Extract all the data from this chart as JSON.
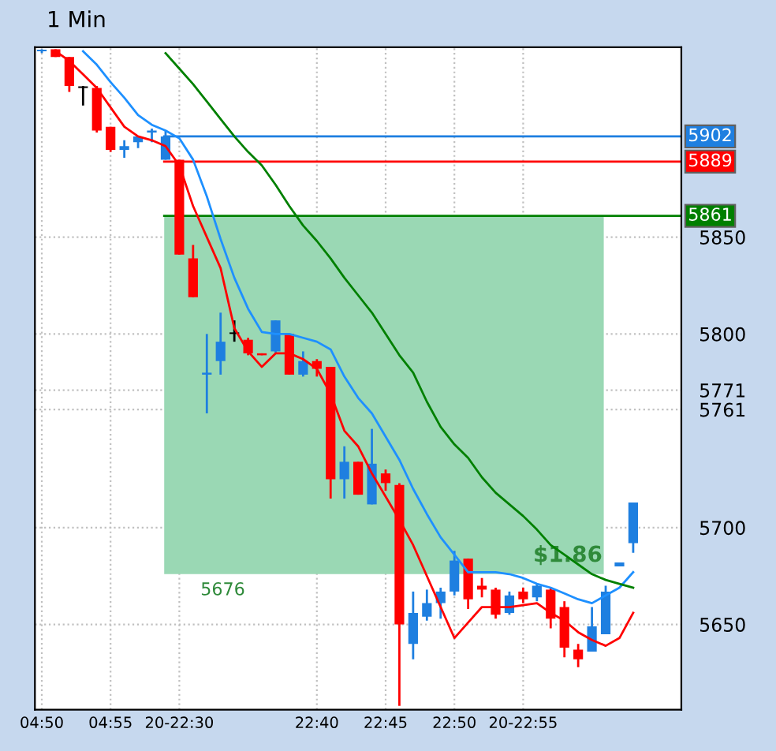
{
  "chart_data": {
    "type": "candlestick",
    "title": "1 Min",
    "categories": [
      "04:50",
      null,
      null,
      null,
      null,
      "04:55",
      null,
      null,
      null,
      null,
      "20-22:30",
      null,
      null,
      null,
      null,
      null,
      null,
      null,
      null,
      null,
      "22:40",
      null,
      null,
      null,
      null,
      "22:45",
      null,
      null,
      null,
      null,
      "22:50",
      null,
      null,
      null,
      null,
      "20-22:55",
      null,
      null,
      null,
      null,
      null,
      null,
      null,
      null,
      null,
      null,
      null
    ],
    "ohlc": [
      [
        5946,
        5947,
        5945,
        5946
      ],
      [
        5947,
        5947,
        5943,
        5943
      ],
      [
        5943,
        5943,
        5925,
        5928
      ],
      [
        5927,
        5928,
        5918,
        5927
      ],
      [
        5927,
        5928,
        5904,
        5905
      ],
      [
        5907,
        5907,
        5894,
        5895
      ],
      [
        5895,
        5900,
        5891,
        5897
      ],
      [
        5899,
        5902,
        5896,
        5902
      ],
      [
        5904,
        5906,
        5899,
        5905
      ],
      [
        5890,
        5905,
        5890,
        5902
      ],
      [
        5890,
        5890,
        5841,
        5841
      ],
      [
        5839,
        5846,
        5819,
        5819
      ],
      [
        5779,
        5800,
        5759,
        5780
      ],
      [
        5786,
        5811,
        5779,
        5796
      ],
      [
        5800,
        5807,
        5796,
        5800
      ],
      [
        5797,
        5798,
        5789,
        5790
      ],
      [
        5790,
        5790,
        5789,
        5789
      ],
      [
        5791,
        5807,
        5790,
        5807
      ],
      [
        5800,
        5800,
        5779,
        5779
      ],
      [
        5779,
        5791,
        5778,
        5786
      ],
      [
        5786,
        5787,
        5778,
        5782
      ],
      [
        5783,
        5783,
        5715,
        5725
      ],
      [
        5725,
        5742,
        5715,
        5734
      ],
      [
        5734,
        5734,
        5717,
        5717
      ],
      [
        5712,
        5751,
        5712,
        5733
      ],
      [
        5728,
        5730,
        5719,
        5723
      ],
      [
        5722,
        5723,
        5608,
        5650
      ],
      [
        5640,
        5667,
        5632,
        5656
      ],
      [
        5654,
        5668,
        5652,
        5661
      ],
      [
        5661,
        5669,
        5653,
        5667
      ],
      [
        5667,
        5688,
        5665,
        5683
      ],
      [
        5684,
        5684,
        5658,
        5663
      ],
      [
        5670,
        5674,
        5664,
        5668
      ],
      [
        5668,
        5669,
        5653,
        5655
      ],
      [
        5656,
        5667,
        5655,
        5665
      ],
      [
        5667,
        5669,
        5661,
        5663
      ],
      [
        5664,
        5671,
        5662,
        5670
      ],
      [
        5668,
        5669,
        5648,
        5653
      ],
      [
        5659,
        5662,
        5633,
        5638
      ],
      [
        5637,
        5640,
        5628,
        5632
      ],
      [
        5636,
        5659,
        5636,
        5649
      ],
      [
        5645,
        5670,
        5645,
        5667
      ],
      [
        5680,
        5682,
        5680,
        5682
      ],
      [
        5692,
        5713,
        5687,
        5713
      ],
      null,
      null,
      null
    ],
    "colors": [
      "#1e7fe0",
      "#ff0000",
      "#ff0000",
      "#000000",
      "#ff0000",
      "#ff0000",
      "#1e7fe0",
      "#1e7fe0",
      "#1e7fe0",
      "#1e7fe0",
      "#ff0000",
      "#ff0000",
      "#1e7fe0",
      "#1e7fe0",
      "#000000",
      "#ff0000",
      "#ff0000",
      "#1e7fe0",
      "#ff0000",
      "#1e7fe0",
      "#ff0000",
      "#ff0000",
      "#1e7fe0",
      "#ff0000",
      "#1e7fe0",
      "#ff0000",
      "#ff0000",
      "#1e7fe0",
      "#1e7fe0",
      "#1e7fe0",
      "#1e7fe0",
      "#ff0000",
      "#ff0000",
      "#ff0000",
      "#1e7fe0",
      "#ff0000",
      "#1e7fe0",
      "#ff0000",
      "#ff0000",
      "#ff0000",
      "#1e7fe0",
      "#1e7fe0",
      "#1e7fe0",
      "#1e7fe0",
      null,
      null,
      null
    ],
    "series": [
      {
        "type": "line",
        "color": "#ff0000",
        "values": [
          null,
          5946,
          5941,
          5934,
          5927,
          5917,
          5907,
          5902,
          5900,
          5897,
          5887,
          5866,
          5850,
          5834,
          5803,
          5791,
          5783,
          5790,
          5790,
          5787,
          5782,
          5769,
          5750,
          5742,
          5728,
          5716,
          5704,
          5691,
          5675,
          5659,
          5643,
          5651,
          5659,
          5659,
          5659,
          5660,
          5661,
          5656,
          5652,
          5646,
          5642,
          5639,
          5643,
          5656,
          null,
          null,
          null
        ]
      },
      {
        "type": "line",
        "color": "#1e90ff",
        "values": [
          null,
          null,
          null,
          5946,
          5939,
          5930,
          5922,
          5913,
          5908,
          5905,
          5901,
          5890,
          5871,
          5849,
          5829,
          5813,
          5801,
          5800,
          5800,
          5798,
          5796,
          5792,
          5778,
          5767,
          5759,
          5747,
          5735,
          5720,
          5707,
          5695,
          5686,
          5677,
          5677,
          5677,
          5676,
          5674,
          5671,
          5669,
          5666,
          5663,
          5661,
          5665,
          5669,
          5677,
          null,
          null,
          null
        ]
      },
      {
        "type": "line",
        "color": "#008000",
        "values": [
          null,
          null,
          null,
          null,
          null,
          null,
          null,
          null,
          null,
          5945,
          5937,
          5929,
          5920,
          5911,
          5902,
          5894,
          5887,
          5877,
          5866,
          5856,
          5848,
          5839,
          5829,
          5820,
          5811,
          5800,
          5789,
          5780,
          5765,
          5752,
          5743,
          5736,
          5726,
          5718,
          5712,
          5706,
          5699,
          5691,
          5686,
          5681,
          5676,
          5673,
          5671,
          5669,
          null,
          null,
          null
        ]
      }
    ],
    "ylim": [
      5606,
      5948
    ],
    "yticks": [
      5650,
      5700,
      {
        "value": 5761,
        "label": "5761"
      },
      {
        "value": 5771,
        "label": "5771"
      },
      5800,
      5850
    ],
    "grid": true,
    "ref_lines": [
      {
        "axis": "y",
        "value": 5902,
        "label": "5902",
        "color": "#1e7fe0",
        "line_style": "solid"
      },
      {
        "axis": "y",
        "value": 5889,
        "label": "5889",
        "color": "#ff0000",
        "line_style": "solid"
      },
      {
        "axis": "y",
        "value": 5861,
        "label": "5861",
        "color": "#008000",
        "line_style": "solid"
      }
    ],
    "bands": [
      {
        "axis": "y",
        "from": 5676,
        "to": 5861,
        "label": "$1.86",
        "color": "#9ad8b4"
      }
    ],
    "annotations": [
      {
        "text": "5676",
        "y": 5676
      }
    ]
  }
}
